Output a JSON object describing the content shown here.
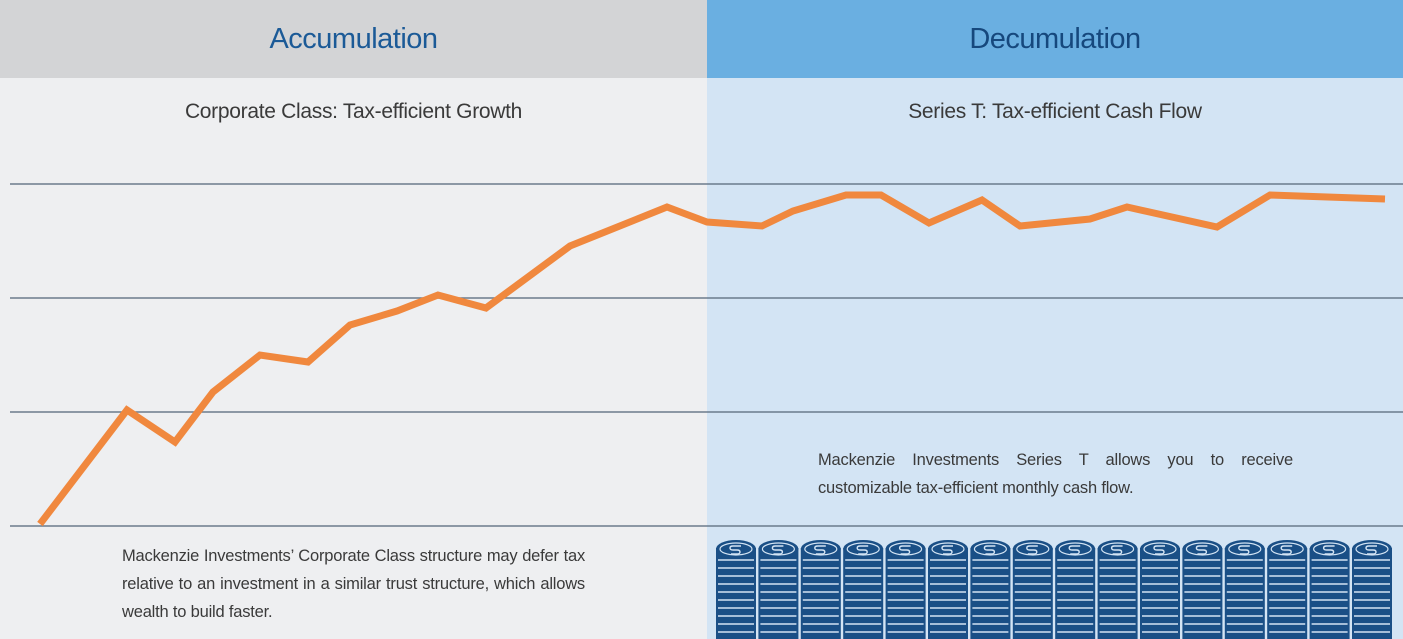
{
  "left": {
    "header": "Accumulation",
    "subtitle": "Corporate Class: Tax-efficient Growth",
    "description": "Mackenzie Investments’ Corporate Class structure may defer tax relative to an investment in a similar trust structure, which allows wealth to build faster."
  },
  "right": {
    "header": "Decumulation",
    "subtitle": "Series T: Tax-efficient Cash Flow",
    "description": "Mackenzie Investments Series T allows you to receive customizable tax-efficient monthly cash flow."
  }
}
